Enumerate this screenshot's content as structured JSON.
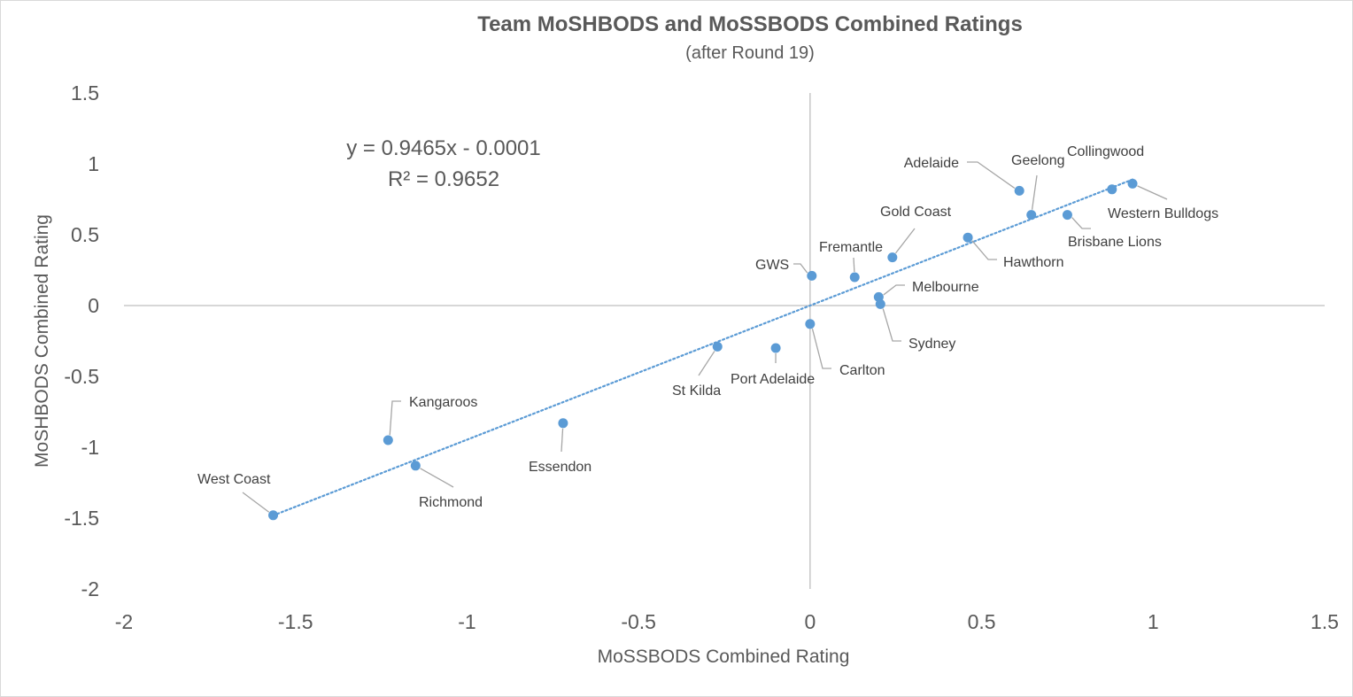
{
  "chart_data": {
    "type": "scatter",
    "title": "Team MoSHBODS and MoSSBODS Combined Ratings",
    "subtitle": "(after Round 19)",
    "xlabel": "MoSSBODS Combined Rating",
    "ylabel": "MoSHBODS Combined Rating",
    "xlim": [
      -2,
      1.5
    ],
    "ylim": [
      -2,
      1.5
    ],
    "x_ticks": [
      "-2",
      "-1.5",
      "-1",
      "-0.5",
      "0",
      "0.5",
      "1",
      "1.5"
    ],
    "y_ticks": [
      "1.5",
      "1",
      "0.5",
      "0",
      "-0.5",
      "-1",
      "-1.5",
      "-2"
    ],
    "grid": false,
    "marker_color": "#5B9BD5",
    "trendline": {
      "type": "linear",
      "slope": 0.9465,
      "intercept": -0.0001,
      "equation": "y = 0.9465x - 0.0001",
      "r_squared": "R² = 0.9652",
      "color": "#5B9BD5",
      "style": "dotted"
    },
    "points": [
      {
        "team": "Western Bulldogs",
        "x": 0.94,
        "y": 0.86
      },
      {
        "team": "Collingwood",
        "x": 0.88,
        "y": 0.82
      },
      {
        "team": "Brisbane Lions",
        "x": 0.75,
        "y": 0.64
      },
      {
        "team": "Geelong",
        "x": 0.645,
        "y": 0.64
      },
      {
        "team": "Adelaide",
        "x": 0.61,
        "y": 0.81
      },
      {
        "team": "Hawthorn",
        "x": 0.46,
        "y": 0.48
      },
      {
        "team": "Gold Coast",
        "x": 0.24,
        "y": 0.34
      },
      {
        "team": "Melbourne",
        "x": 0.2,
        "y": 0.06
      },
      {
        "team": "Sydney",
        "x": 0.205,
        "y": 0.01
      },
      {
        "team": "Fremantle",
        "x": 0.13,
        "y": 0.2
      },
      {
        "team": "GWS",
        "x": 0.005,
        "y": 0.21
      },
      {
        "team": "Carlton",
        "x": 0.0,
        "y": -0.13
      },
      {
        "team": "Port Adelaide",
        "x": -0.1,
        "y": -0.3
      },
      {
        "team": "St Kilda",
        "x": -0.27,
        "y": -0.29
      },
      {
        "team": "Essendon",
        "x": -0.72,
        "y": -0.83
      },
      {
        "team": "Kangaroos",
        "x": -1.23,
        "y": -0.95
      },
      {
        "team": "Richmond",
        "x": -1.15,
        "y": -1.13
      },
      {
        "team": "West Coast",
        "x": -1.565,
        "y": -1.48
      }
    ]
  }
}
